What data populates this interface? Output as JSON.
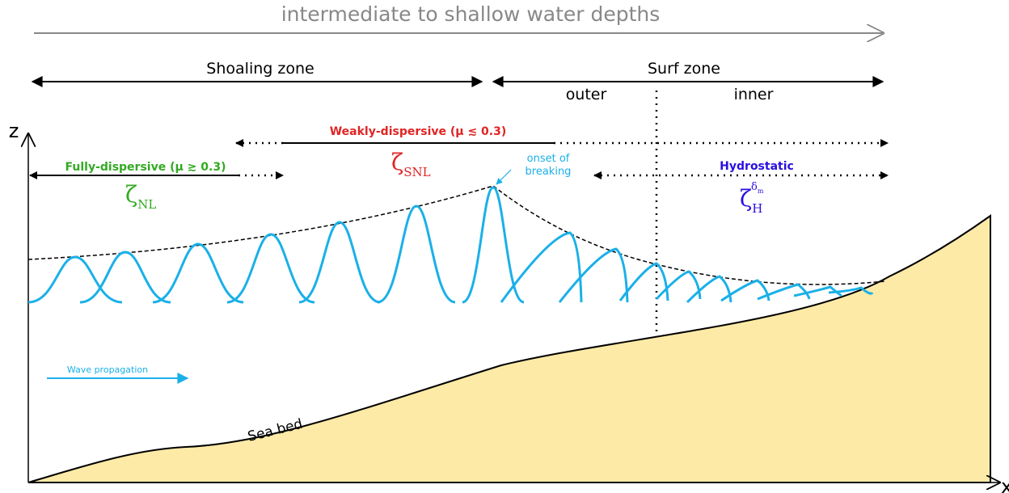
{
  "header": {
    "title": "intermediate to shallow water depths"
  },
  "zones": {
    "shoaling": "Shoaling zone",
    "surf": "Surf zone",
    "outer": "outer",
    "inner": "inner"
  },
  "regimes": [
    {
      "label": "Fully-dispersive (μ ≳ 0.3)",
      "symbol": "ζ",
      "subscript": "NL"
    },
    {
      "label": "Weakly-dispersive (μ ≲ 0.3)",
      "symbol": "ζ",
      "subscript": "SNL"
    },
    {
      "label": "Hydrostatic",
      "symbol": "ζ",
      "subscript": "H",
      "superscript": "δ",
      "superscript_sub": "m"
    }
  ],
  "annotations": {
    "breaking": [
      "onset of",
      "breaking"
    ],
    "propagation": "Wave propagation",
    "seabed": "Sea bed"
  },
  "axes": {
    "z": "z",
    "x": "x"
  }
}
